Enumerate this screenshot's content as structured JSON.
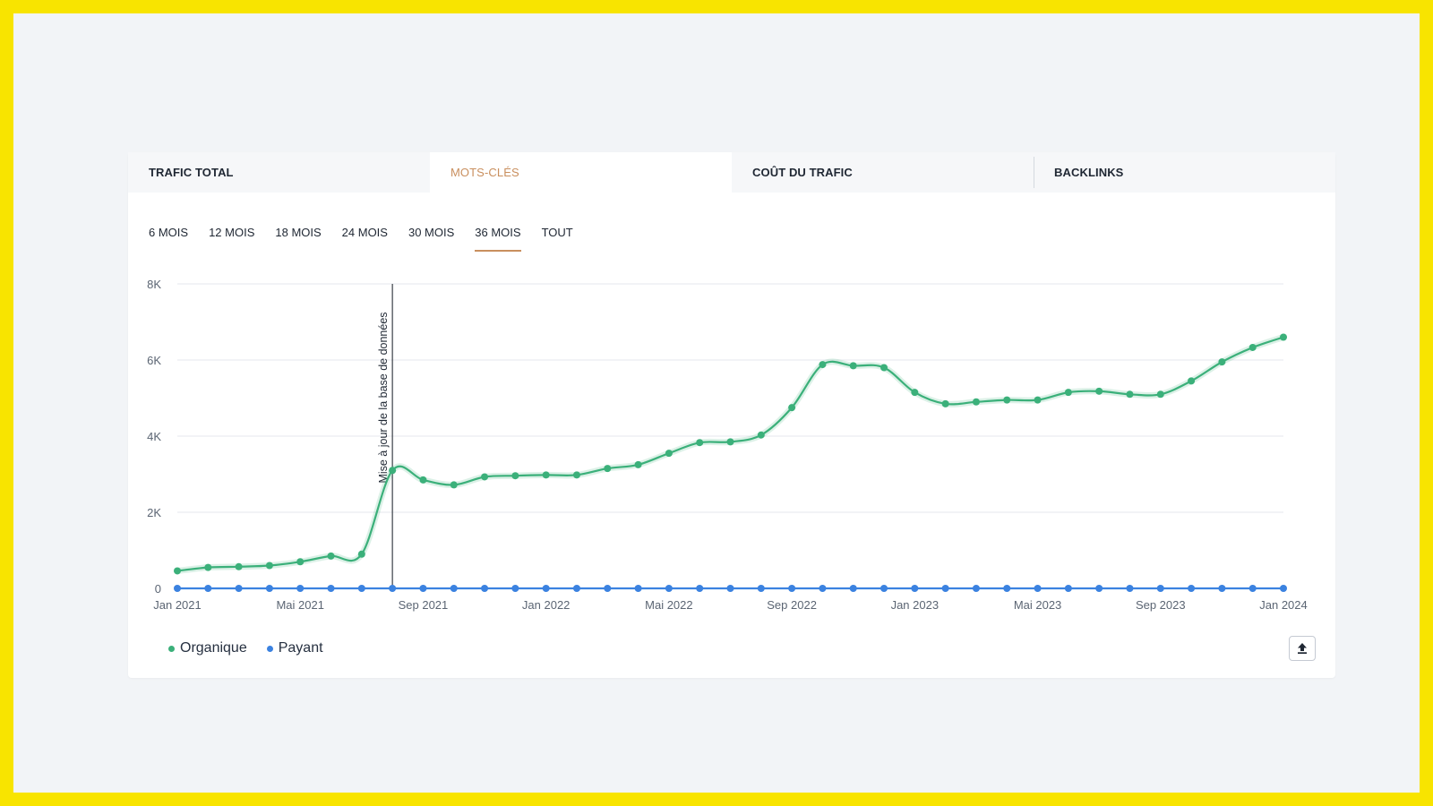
{
  "tabs": [
    {
      "label": "TRAFIC TOTAL",
      "active": false
    },
    {
      "label": "MOTS-CLÉS",
      "active": true
    },
    {
      "label": "COÛT DU TRAFIC",
      "active": false
    },
    {
      "label": "BACKLINKS",
      "active": false
    }
  ],
  "periods": [
    "6 MOIS",
    "12 MOIS",
    "18 MOIS",
    "24 MOIS",
    "30 MOIS",
    "36 MOIS",
    "TOUT"
  ],
  "active_period": "36 MOIS",
  "legend": {
    "organic": "Organique",
    "paid": "Payant"
  },
  "icons": {
    "export": "upload-icon"
  },
  "colors": {
    "organic": "#3bb07a",
    "paid": "#3b82e0",
    "accent": "#c98f5e"
  },
  "chart_data": {
    "type": "line",
    "x": [
      "2021-01",
      "2021-02",
      "2021-03",
      "2021-04",
      "2021-05",
      "2021-06",
      "2021-07",
      "2021-08",
      "2021-09",
      "2021-10",
      "2021-11",
      "2021-12",
      "2022-01",
      "2022-02",
      "2022-03",
      "2022-04",
      "2022-05",
      "2022-06",
      "2022-07",
      "2022-08",
      "2022-09",
      "2022-10",
      "2022-11",
      "2022-12",
      "2023-01",
      "2023-02",
      "2023-03",
      "2023-04",
      "2023-05",
      "2023-06",
      "2023-07",
      "2023-08",
      "2023-09",
      "2023-10",
      "2023-11",
      "2023-12",
      "2024-01"
    ],
    "x_tick_labels": [
      "Jan 2021",
      "Mai 2021",
      "Sep 2021",
      "Jan 2022",
      "Mai 2022",
      "Sep 2022",
      "Jan 2023",
      "Mai 2023",
      "Sep 2023",
      "Jan 2024"
    ],
    "y_tick_labels": [
      "0",
      "2K",
      "4K",
      "6K",
      "8K"
    ],
    "ylim": [
      0,
      8000
    ],
    "series": [
      {
        "name": "Organique",
        "values": [
          460,
          550,
          570,
          600,
          700,
          850,
          900,
          3100,
          2850,
          2720,
          2930,
          2960,
          2980,
          2980,
          3150,
          3250,
          3550,
          3830,
          3850,
          4030,
          4750,
          5880,
          5850,
          5800,
          5150,
          4850,
          4900,
          4950,
          4950,
          5150,
          5180,
          5100,
          5100,
          5450,
          5950,
          6330,
          6600
        ]
      },
      {
        "name": "Payant",
        "values": [
          0,
          0,
          0,
          0,
          0,
          0,
          0,
          0,
          0,
          0,
          0,
          0,
          0,
          0,
          0,
          0,
          0,
          0,
          0,
          0,
          0,
          0,
          0,
          0,
          0,
          0,
          0,
          0,
          0,
          0,
          0,
          0,
          0,
          0,
          0,
          0,
          0
        ]
      }
    ],
    "annotations": [
      {
        "x": "2021-08",
        "label": "Mise à jour de la base de données"
      }
    ],
    "grid": true,
    "legend_position": "bottom-left"
  }
}
